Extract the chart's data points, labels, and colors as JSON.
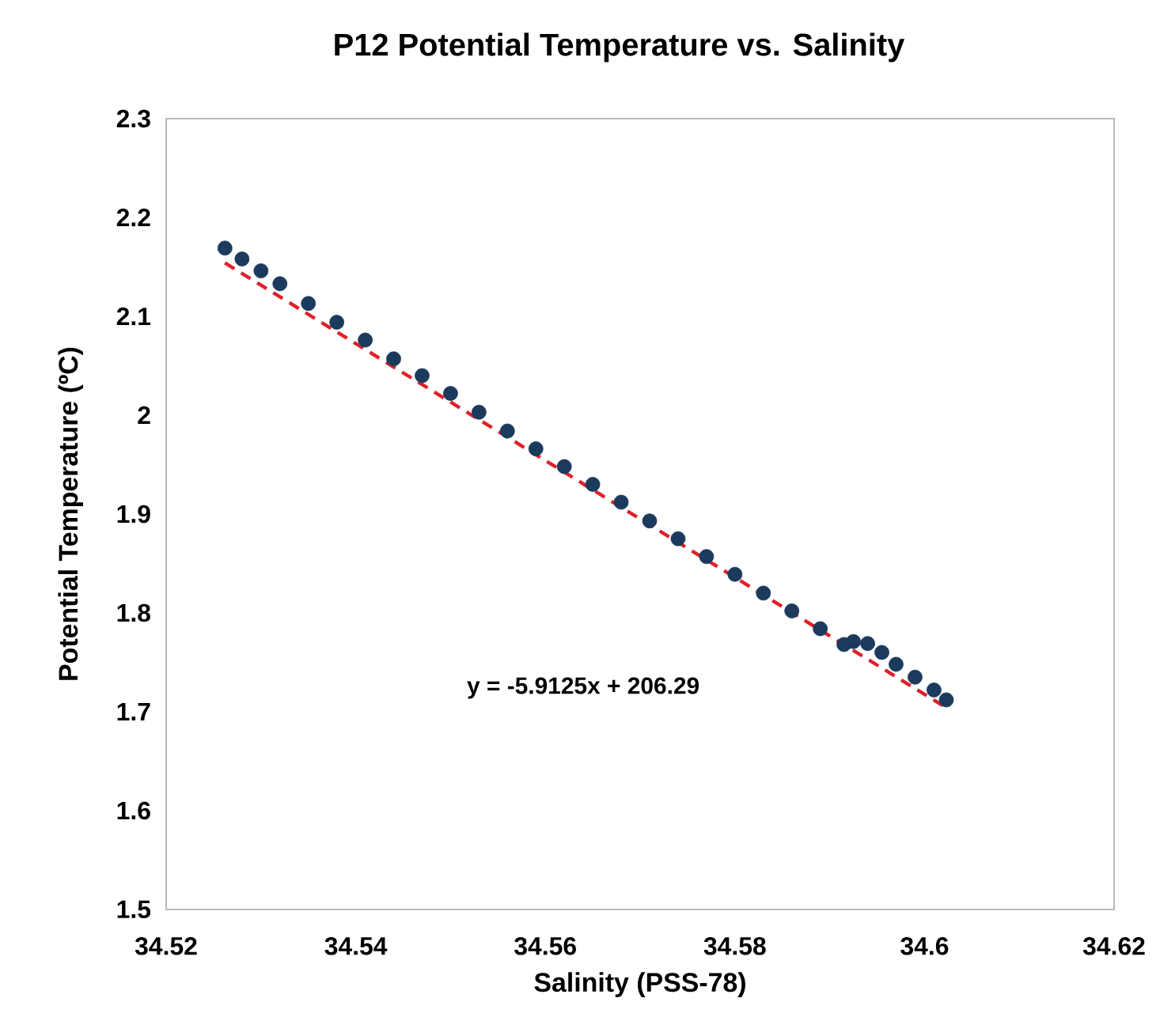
{
  "chart_data": {
    "type": "scatter",
    "title": "P12 Potential Temperature vs. Salinity",
    "xlabel": "Salinity (PSS-78)",
    "ylabel": "Potential Temperature (ºC)",
    "xlim": [
      34.52,
      34.62
    ],
    "xticks": [
      34.52,
      34.54,
      34.56,
      34.58,
      34.6,
      34.62
    ],
    "ylim": [
      1.5,
      2.3
    ],
    "yticks": [
      1.5,
      1.6,
      1.7,
      1.8,
      1.9,
      2,
      2.1,
      2.2,
      2.3
    ],
    "grid": false,
    "series": [
      {
        "color": "#1b3a5c",
        "x": [
          34.5262,
          34.528,
          34.53,
          34.532,
          34.535,
          34.538,
          34.541,
          34.544,
          34.547,
          34.55,
          34.553,
          34.556,
          34.559,
          34.562,
          34.565,
          34.568,
          34.571,
          34.574,
          34.577,
          34.58,
          34.583,
          34.586,
          34.589,
          34.5915,
          34.5925,
          34.594,
          34.5955,
          34.597,
          34.599,
          34.601,
          34.6023
        ],
        "values": [
          2.169,
          2.158,
          2.146,
          2.133,
          2.113,
          2.094,
          2.076,
          2.057,
          2.04,
          2.022,
          2.003,
          1.984,
          1.966,
          1.948,
          1.93,
          1.912,
          1.893,
          1.875,
          1.857,
          1.839,
          1.82,
          1.802,
          1.784,
          1.768,
          1.771,
          1.769,
          1.76,
          1.748,
          1.735,
          1.722,
          1.712
        ]
      },
      {
        "type": "line",
        "marker": "none",
        "line_style": "dashed",
        "color": "#e0202a",
        "x": [
          34.5262,
          34.6023
        ],
        "values": [
          2.154,
          1.704
        ]
      }
    ],
    "annotations": [
      "y = -5.9125x + 206.29"
    ]
  }
}
